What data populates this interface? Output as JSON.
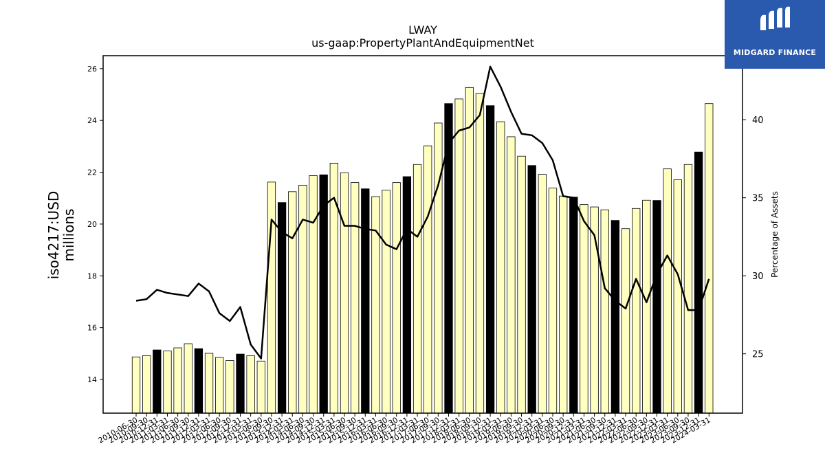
{
  "brand": {
    "name": "MIDGARD FINANCE",
    "bg_color": "#2a5aad"
  },
  "chart_data": {
    "type": "bar",
    "title": "LWAY",
    "subtitle": "us-gaap:PropertyPlantAndEquipmentNet",
    "ylabel": "iso4217:USD\nmillions",
    "y2label": "Percentage of Assets",
    "ylim": [
      12.7,
      26.5
    ],
    "y2lim": [
      21.2,
      44.1
    ],
    "yticks": [
      14,
      16,
      18,
      20,
      22,
      24,
      26
    ],
    "y2ticks": [
      25,
      30,
      35,
      40
    ],
    "grid": false,
    "colors": {
      "bar": "#ffffc0",
      "bar_q4": "#000000",
      "line": "#000000"
    },
    "categories": [
      "2010-06-30",
      "2010-09-30",
      "2010-12-31",
      "2011-03-31",
      "2011-06-30",
      "2011-09-30",
      "2011-12-31",
      "2012-03-31",
      "2012-06-30",
      "2012-09-30",
      "2012-12-31",
      "2013-03-31",
      "2013-06-30",
      "2013-09-30",
      "2013-12-31",
      "2014-03-31",
      "2014-06-30",
      "2014-09-30",
      "2014-12-31",
      "2015-03-31",
      "2015-06-30",
      "2015-09-30",
      "2015-12-31",
      "2016-03-31",
      "2016-06-30",
      "2016-09-30",
      "2016-12-31",
      "2017-03-31",
      "2017-06-30",
      "2017-09-30",
      "2017-12-31",
      "2018-03-31",
      "2018-06-30",
      "2018-09-30",
      "2018-12-31",
      "2019-03-31",
      "2019-06-30",
      "2019-09-30",
      "2019-12-31",
      "2020-03-31",
      "2020-06-30",
      "2020-09-30",
      "2020-12-31",
      "2021-03-31",
      "2021-06-30",
      "2021-09-30",
      "2021-12-31",
      "2022-03-31",
      "2022-06-30",
      "2022-09-30",
      "2022-12-31",
      "2023-03-31",
      "2023-06-30",
      "2023-09-30",
      "2023-12-31",
      "2024-03-31"
    ],
    "series": [
      {
        "values": [
          14.87,
          14.92,
          15.14,
          15.1,
          15.22,
          15.38,
          15.19,
          15.01,
          14.85,
          14.73,
          14.98,
          14.92,
          14.71,
          21.62,
          20.83,
          21.25,
          21.5,
          21.87,
          21.9,
          22.35,
          21.98,
          21.6,
          21.36,
          21.06,
          21.31,
          21.6,
          21.83,
          22.3,
          23.02,
          23.9,
          24.65,
          24.83,
          25.27,
          25.04,
          24.57,
          23.95,
          23.37,
          22.62,
          22.26,
          21.92,
          21.39,
          21.08,
          21.04,
          20.75,
          20.66,
          20.55,
          20.14,
          19.82,
          20.6,
          20.92,
          20.91,
          22.13,
          21.71,
          22.3,
          22.78,
          24.65
        ]
      },
      {
        "axis": "right",
        "values": [
          28.4,
          28.5,
          29.1,
          28.9,
          28.8,
          28.7,
          29.5,
          29.0,
          27.6,
          27.1,
          28.0,
          25.6,
          24.7,
          33.6,
          32.8,
          32.4,
          33.6,
          33.4,
          34.5,
          35.0,
          33.2,
          33.2,
          33.0,
          32.9,
          32.0,
          31.7,
          33.0,
          32.5,
          33.8,
          35.8,
          38.5,
          39.3,
          39.5,
          40.3,
          43.4,
          42.1,
          40.5,
          39.1,
          39.0,
          38.5,
          37.4,
          35.1,
          35.0,
          33.5,
          32.6,
          29.2,
          28.4,
          27.9,
          29.8,
          28.3,
          30.1,
          31.3,
          30.1,
          27.8,
          27.8,
          29.8
        ]
      }
    ]
  }
}
